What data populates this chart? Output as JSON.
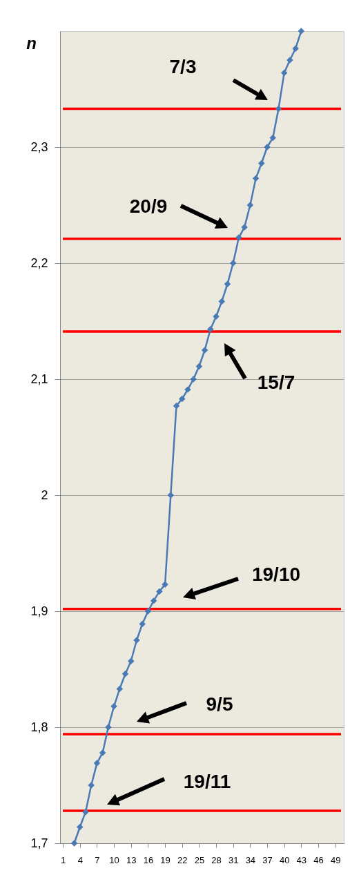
{
  "chart_data": {
    "type": "line",
    "ylabel": "n",
    "x": [
      3,
      4,
      5,
      6,
      7,
      8,
      9,
      10,
      11,
      12,
      13,
      14,
      15,
      16,
      17,
      18,
      19,
      20,
      21,
      22,
      23,
      24,
      25,
      26,
      27,
      28,
      29,
      30,
      31,
      32,
      33,
      34,
      35,
      36,
      37,
      38,
      39,
      40,
      41,
      42,
      43
    ],
    "series": [
      {
        "color": "#4a7ab5",
        "values": [
          1.7,
          1.714,
          1.727,
          1.75,
          1.769,
          1.778,
          1.8,
          1.818,
          1.833,
          1.846,
          1.857,
          1.875,
          1.889,
          1.9,
          1.909,
          1.917,
          1.923,
          2.0,
          2.077,
          2.083,
          2.091,
          2.1,
          2.111,
          2.125,
          2.143,
          2.154,
          2.167,
          2.182,
          2.2,
          2.222,
          2.231,
          2.25,
          2.273,
          2.286,
          2.3,
          2.308,
          2.333,
          2.364,
          2.375,
          2.385,
          2.4
        ]
      }
    ],
    "xlim": [
      0.5,
      50.5
    ],
    "xticks": [
      1,
      4,
      7,
      10,
      13,
      16,
      19,
      22,
      25,
      28,
      31,
      34,
      37,
      40,
      43,
      46,
      49
    ],
    "ylim": [
      1.7,
      2.4
    ],
    "yticks": [
      {
        "value": 1.7,
        "label": "1,7"
      },
      {
        "value": 1.8,
        "label": "1,8"
      },
      {
        "value": 1.9,
        "label": "1,9"
      },
      2,
      {
        "value": 2.1,
        "label": "2,1"
      },
      {
        "value": 2.2,
        "label": "2,2"
      },
      {
        "value": 2.3,
        "label": "2,3"
      }
    ],
    "grid": "y",
    "marker": "diamond",
    "line_style": "solid",
    "ref_lines": [
      {
        "axis": "y",
        "value": 1.728,
        "color": "#ff0000"
      },
      {
        "axis": "y",
        "value": 1.794,
        "color": "#ff0000"
      },
      {
        "axis": "y",
        "value": 1.902,
        "color": "#ff0000"
      },
      {
        "axis": "y",
        "value": 2.141,
        "color": "#ff0000"
      },
      {
        "axis": "y",
        "value": 2.221,
        "color": "#ff0000"
      },
      {
        "axis": "y",
        "value": 2.333,
        "color": "#ff0000"
      }
    ],
    "annotations": [
      "7/3",
      "20/9",
      "15/7",
      "19/10",
      "9/5",
      "19/11"
    ]
  }
}
